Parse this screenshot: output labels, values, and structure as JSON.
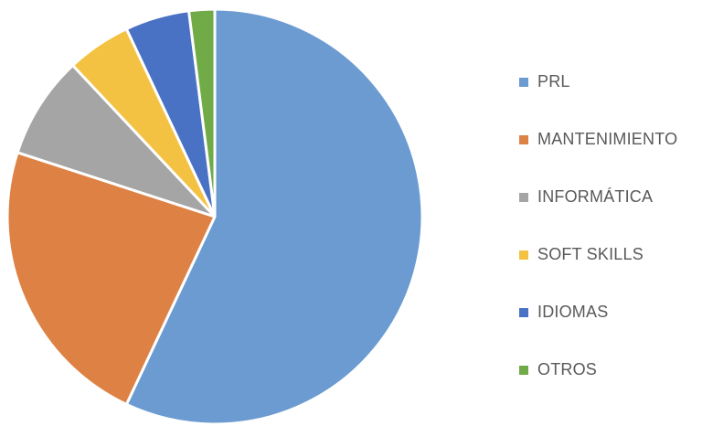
{
  "chart_data": {
    "type": "pie",
    "title": "",
    "categories": [
      "PRL",
      "MANTENIMIENTO",
      "INFORMÁTICA",
      "SOFT SKILLS",
      "IDIOMAS",
      "OTROS"
    ],
    "values": [
      57,
      23,
      8,
      5,
      5,
      2
    ],
    "colors": [
      "#6b9bd1",
      "#dd8244",
      "#a5a5a5",
      "#f4c243",
      "#4a72c4",
      "#71ab48"
    ],
    "legend_position": "right",
    "start_angle_deg": 0,
    "direction": "clockwise"
  }
}
